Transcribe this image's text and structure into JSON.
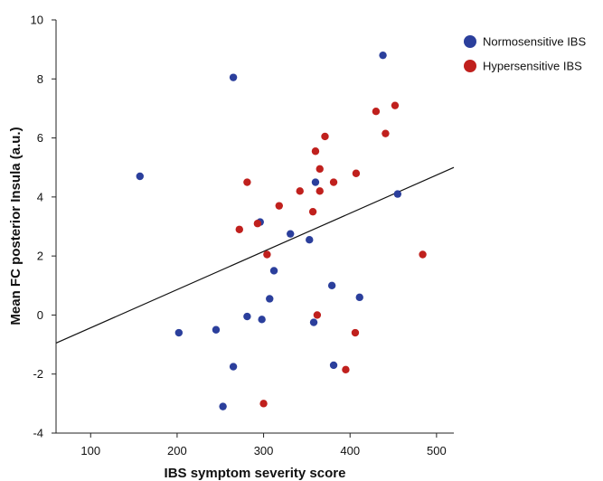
{
  "chart_data": {
    "type": "scatter",
    "title": "",
    "xlabel": "IBS symptom severity score",
    "ylabel": "Mean FC posterior Insula (a.u.)",
    "xlim": [
      60,
      520
    ],
    "ylim": [
      -4,
      10
    ],
    "xticks": [
      100,
      200,
      300,
      400,
      500
    ],
    "yticks": [
      -4,
      -2,
      0,
      2,
      4,
      6,
      8,
      10
    ],
    "grid": false,
    "legend_position": "top-right",
    "series": [
      {
        "name": "Normosensitive IBS",
        "color": "#2b3f9c",
        "points": [
          {
            "x": 157,
            "y": 4.7
          },
          {
            "x": 265,
            "y": 8.05
          },
          {
            "x": 438,
            "y": 8.8
          },
          {
            "x": 360,
            "y": 4.5
          },
          {
            "x": 455,
            "y": 4.1
          },
          {
            "x": 296,
            "y": 3.15
          },
          {
            "x": 331,
            "y": 2.75
          },
          {
            "x": 353,
            "y": 2.55
          },
          {
            "x": 312,
            "y": 1.5
          },
          {
            "x": 307,
            "y": 0.55
          },
          {
            "x": 379,
            "y": 1.0
          },
          {
            "x": 411,
            "y": 0.6
          },
          {
            "x": 281,
            "y": -0.05
          },
          {
            "x": 298,
            "y": -0.15
          },
          {
            "x": 358,
            "y": -0.25
          },
          {
            "x": 202,
            "y": -0.6
          },
          {
            "x": 245,
            "y": -0.5
          },
          {
            "x": 265,
            "y": -1.75
          },
          {
            "x": 381,
            "y": -1.7
          },
          {
            "x": 253,
            "y": -3.1
          }
        ]
      },
      {
        "name": "Hypersensitive IBS",
        "color": "#c0201d",
        "points": [
          {
            "x": 430,
            "y": 6.9
          },
          {
            "x": 452,
            "y": 7.1
          },
          {
            "x": 441,
            "y": 6.15
          },
          {
            "x": 371,
            "y": 6.05
          },
          {
            "x": 360,
            "y": 5.55
          },
          {
            "x": 365,
            "y": 4.95
          },
          {
            "x": 407,
            "y": 4.8
          },
          {
            "x": 281,
            "y": 4.5
          },
          {
            "x": 381,
            "y": 4.5
          },
          {
            "x": 342,
            "y": 4.2
          },
          {
            "x": 365,
            "y": 4.2
          },
          {
            "x": 318,
            "y": 3.7
          },
          {
            "x": 357,
            "y": 3.5
          },
          {
            "x": 293,
            "y": 3.1
          },
          {
            "x": 272,
            "y": 2.9
          },
          {
            "x": 304,
            "y": 2.05
          },
          {
            "x": 484,
            "y": 2.05
          },
          {
            "x": 362,
            "y": 0.0
          },
          {
            "x": 406,
            "y": -0.6
          },
          {
            "x": 395,
            "y": -1.85
          },
          {
            "x": 300,
            "y": -3.0
          }
        ]
      }
    ],
    "regression_line": {
      "x": [
        60,
        520
      ],
      "y": [
        -0.95,
        5.0
      ],
      "color": "#111111"
    }
  }
}
